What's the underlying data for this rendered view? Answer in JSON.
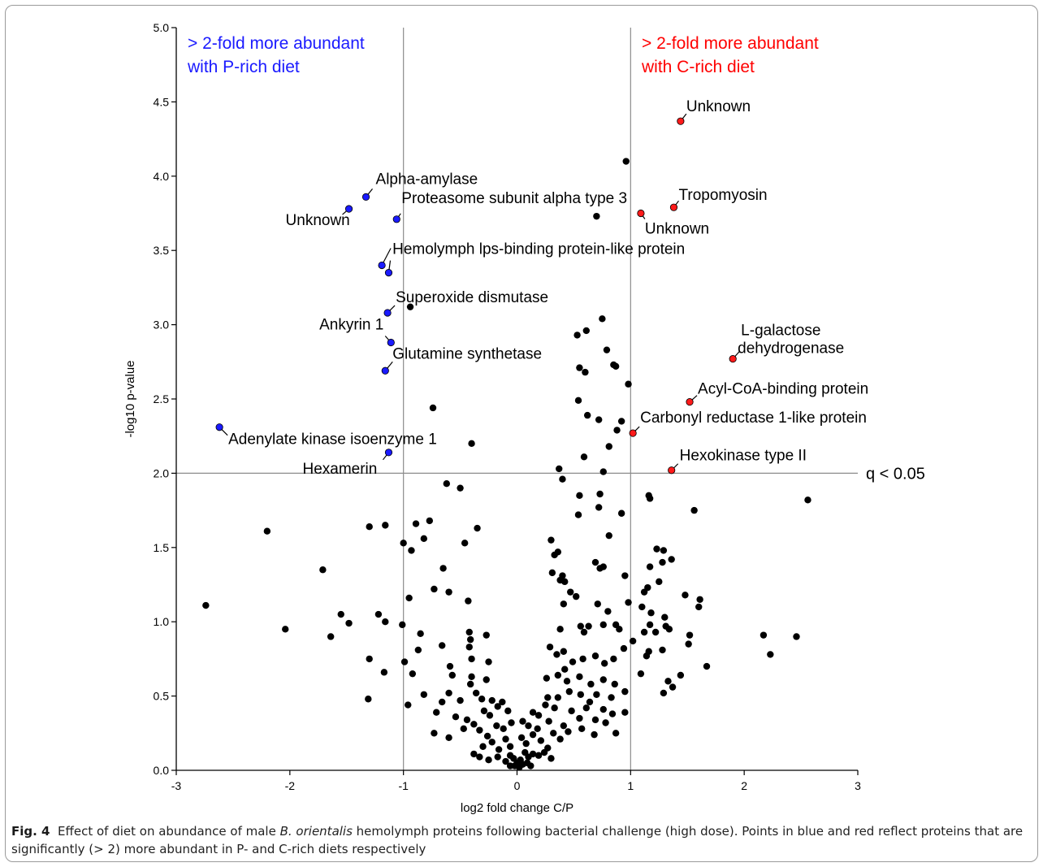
{
  "chart_data": {
    "type": "scatter",
    "xlabel": "log2 fold change C/P",
    "ylabel": "-log10 p-value",
    "xlim": [
      -3,
      3
    ],
    "ylim": [
      0,
      5
    ],
    "x_ticks": [
      -3,
      -2,
      -1,
      0,
      1,
      2,
      3
    ],
    "x_tick_labels": [
      "-3",
      "-2",
      "-1",
      "0",
      "1",
      "2",
      "3"
    ],
    "y_ticks": [
      0,
      0.5,
      1,
      1.5,
      2,
      2.5,
      3,
      3.5,
      4,
      4.5,
      5
    ],
    "y_tick_labels": [
      "0.0",
      "0.5",
      "1.0",
      "1.5",
      "2.0",
      "2.5",
      "3.0",
      "3.5",
      "4.0",
      "4.5",
      "5.0"
    ],
    "grid": false,
    "reference_lines": [
      {
        "axis": "x",
        "value": -1
      },
      {
        "axis": "x",
        "value": 1
      },
      {
        "axis": "y",
        "value": 2.0,
        "label": "q <  0.05"
      }
    ],
    "region_labels": [
      {
        "lines": [
          "> 2-fold more abundant",
          "with P-rich diet"
        ],
        "color": "#1a1aff",
        "position": "top-left"
      },
      {
        "lines": [
          "> 2-fold more abundant",
          "with C-rich diet"
        ],
        "color": "#ff0000",
        "position": "top-right"
      }
    ],
    "colors": {
      "blue": "#1a1aff",
      "red": "#ff1a1a",
      "black": "#000000",
      "line": "#8c8c8c"
    },
    "highlighted": [
      {
        "name": "Alpha-amylase",
        "x": -1.33,
        "y": 3.86,
        "color": "blue"
      },
      {
        "name": "Unknown",
        "x": -1.48,
        "y": 3.78,
        "color": "blue"
      },
      {
        "name": "Proteasome subunit alpha type 3",
        "x": -1.06,
        "y": 3.71,
        "color": "blue"
      },
      {
        "name": "Hemolymph lps-binding protein-like protein",
        "x": -1.19,
        "y": 3.4,
        "color": "blue"
      },
      {
        "name": "",
        "x": -1.13,
        "y": 3.35,
        "color": "blue"
      },
      {
        "name": "Superoxide dismutase",
        "x": -1.14,
        "y": 3.08,
        "color": "blue"
      },
      {
        "name": "Ankyrin 1",
        "x": -1.11,
        "y": 2.88,
        "color": "blue"
      },
      {
        "name": "Glutamine synthetase",
        "x": -1.16,
        "y": 2.69,
        "color": "blue"
      },
      {
        "name": "Adenylate kinase isoenzyme 1",
        "x": -2.62,
        "y": 2.31,
        "color": "blue"
      },
      {
        "name": "Hexamerin",
        "x": -1.13,
        "y": 2.14,
        "color": "blue"
      },
      {
        "name": "Unknown",
        "x": 1.44,
        "y": 4.37,
        "color": "red"
      },
      {
        "name": "Tropomyosin",
        "x": 1.38,
        "y": 3.79,
        "color": "red"
      },
      {
        "name": "Unknown",
        "x": 1.09,
        "y": 3.75,
        "color": "red"
      },
      {
        "name": "L-galactose dehydrogenase",
        "x": 1.9,
        "y": 2.77,
        "color": "red"
      },
      {
        "name": "Acyl-CoA-binding protein",
        "x": 1.52,
        "y": 2.48,
        "color": "red"
      },
      {
        "name": "Carbonyl reductase 1-like protein",
        "x": 1.02,
        "y": 2.27,
        "color": "red"
      },
      {
        "name": "Hexokinase type II",
        "x": 1.36,
        "y": 2.02,
        "color": "red"
      }
    ],
    "points": [
      [
        0.96,
        4.1
      ],
      [
        0.7,
        3.73
      ],
      [
        -0.94,
        3.12
      ],
      [
        0.75,
        3.04
      ],
      [
        0.61,
        2.96
      ],
      [
        0.53,
        2.93
      ],
      [
        0.79,
        2.83
      ],
      [
        0.85,
        2.73
      ],
      [
        0.87,
        2.72
      ],
      [
        0.55,
        2.71
      ],
      [
        0.6,
        2.68
      ],
      [
        0.98,
        2.6
      ],
      [
        -0.74,
        2.44
      ],
      [
        0.54,
        2.49
      ],
      [
        0.62,
        2.39
      ],
      [
        0.72,
        2.36
      ],
      [
        0.88,
        2.29
      ],
      [
        0.92,
        2.35
      ],
      [
        -0.4,
        2.2
      ],
      [
        0.59,
        2.11
      ],
      [
        0.81,
        2.18
      ],
      [
        0.37,
        2.03
      ],
      [
        0.76,
        2.01
      ],
      [
        0.4,
        1.96
      ],
      [
        -0.62,
        1.93
      ],
      [
        -0.5,
        1.9
      ],
      [
        0.55,
        1.85
      ],
      [
        0.73,
        1.86
      ],
      [
        0.72,
        1.77
      ],
      [
        0.92,
        1.73
      ],
      [
        0.54,
        1.72
      ],
      [
        1.16,
        1.85
      ],
      [
        1.17,
        1.83
      ],
      [
        1.56,
        1.75
      ],
      [
        -2.2,
        1.61
      ],
      [
        -1.3,
        1.64
      ],
      [
        -1.16,
        1.65
      ],
      [
        -0.89,
        1.66
      ],
      [
        -0.77,
        1.68
      ],
      [
        -0.35,
        1.63
      ],
      [
        -0.82,
        1.56
      ],
      [
        -1.0,
        1.53
      ],
      [
        -0.46,
        1.53
      ],
      [
        -0.93,
        1.48
      ],
      [
        0.3,
        1.55
      ],
      [
        0.33,
        1.45
      ],
      [
        0.36,
        1.47
      ],
      [
        0.81,
        1.58
      ],
      [
        0.69,
        1.4
      ],
      [
        0.73,
        1.36
      ],
      [
        0.76,
        1.37
      ],
      [
        1.23,
        1.49
      ],
      [
        1.29,
        1.48
      ],
      [
        -1.71,
        1.35
      ],
      [
        -0.65,
        1.36
      ],
      [
        0.31,
        1.33
      ],
      [
        0.4,
        1.31
      ],
      [
        0.38,
        1.28
      ],
      [
        0.42,
        1.27
      ],
      [
        0.95,
        1.31
      ],
      [
        1.17,
        1.37
      ],
      [
        1.28,
        1.4
      ],
      [
        1.36,
        1.42
      ],
      [
        -0.73,
        1.22
      ],
      [
        -0.6,
        1.2
      ],
      [
        -0.95,
        1.16
      ],
      [
        -0.43,
        1.14
      ],
      [
        0.47,
        1.2
      ],
      [
        0.52,
        1.17
      ],
      [
        1.15,
        1.23
      ],
      [
        1.12,
        1.2
      ],
      [
        1.25,
        1.27
      ],
      [
        1.48,
        1.18
      ],
      [
        1.61,
        1.15
      ],
      [
        -2.74,
        1.11
      ],
      [
        -1.55,
        1.05
      ],
      [
        -1.48,
        0.99
      ],
      [
        -1.22,
        1.05
      ],
      [
        -1.16,
        1.0
      ],
      [
        -1.01,
        0.98
      ],
      [
        0.41,
        1.12
      ],
      [
        0.71,
        1.12
      ],
      [
        0.8,
        1.07
      ],
      [
        0.98,
        1.13
      ],
      [
        1.1,
        1.1
      ],
      [
        1.18,
        1.06
      ],
      [
        1.3,
        1.03
      ],
      [
        1.6,
        1.1
      ],
      [
        -2.04,
        0.95
      ],
      [
        -1.64,
        0.9
      ],
      [
        -0.85,
        0.92
      ],
      [
        -0.42,
        0.93
      ],
      [
        -0.41,
        0.88
      ],
      [
        -0.42,
        0.83
      ],
      [
        -0.27,
        0.91
      ],
      [
        0.38,
        0.95
      ],
      [
        0.56,
        0.97
      ],
      [
        0.59,
        0.93
      ],
      [
        0.63,
        0.97
      ],
      [
        0.76,
        0.98
      ],
      [
        0.87,
        0.98
      ],
      [
        0.9,
        0.95
      ],
      [
        1.02,
        0.87
      ],
      [
        1.12,
        0.93
      ],
      [
        1.17,
        0.98
      ],
      [
        1.22,
        0.93
      ],
      [
        1.31,
        0.97
      ],
      [
        1.34,
        0.95
      ],
      [
        1.52,
        0.91
      ],
      [
        2.17,
        0.91
      ],
      [
        2.46,
        0.9
      ],
      [
        -1.3,
        0.75
      ],
      [
        -1.17,
        0.66
      ],
      [
        -0.99,
        0.73
      ],
      [
        -0.87,
        0.81
      ],
      [
        -0.66,
        0.84
      ],
      [
        -0.59,
        0.7
      ],
      [
        -0.4,
        0.75
      ],
      [
        -0.25,
        0.73
      ],
      [
        0.29,
        0.83
      ],
      [
        0.35,
        0.78
      ],
      [
        0.41,
        0.8
      ],
      [
        0.49,
        0.73
      ],
      [
        0.58,
        0.75
      ],
      [
        0.69,
        0.77
      ],
      [
        0.77,
        0.72
      ],
      [
        0.85,
        0.75
      ],
      [
        0.94,
        0.82
      ],
      [
        1.16,
        0.8
      ],
      [
        1.14,
        0.77
      ],
      [
        1.28,
        0.81
      ],
      [
        1.51,
        0.85
      ],
      [
        1.67,
        0.7
      ],
      [
        2.23,
        0.78
      ],
      [
        -1.31,
        0.48
      ],
      [
        -0.92,
        0.65
      ],
      [
        -0.82,
        0.51
      ],
      [
        -0.96,
        0.44
      ],
      [
        -0.57,
        0.64
      ],
      [
        -0.4,
        0.63
      ],
      [
        -0.41,
        0.58
      ],
      [
        -0.27,
        0.61
      ],
      [
        0.26,
        0.62
      ],
      [
        0.36,
        0.64
      ],
      [
        0.42,
        0.68
      ],
      [
        0.44,
        0.6
      ],
      [
        0.55,
        0.63
      ],
      [
        0.65,
        0.58
      ],
      [
        0.76,
        0.61
      ],
      [
        0.86,
        0.58
      ],
      [
        1.09,
        0.65
      ],
      [
        1.33,
        0.6
      ],
      [
        1.44,
        0.64
      ],
      [
        1.29,
        0.52
      ],
      [
        1.37,
        0.56
      ],
      [
        -0.6,
        0.52
      ],
      [
        -0.66,
        0.46
      ],
      [
        -0.5,
        0.47
      ],
      [
        -0.36,
        0.52
      ],
      [
        -0.31,
        0.48
      ],
      [
        -0.22,
        0.47
      ],
      [
        -0.13,
        0.46
      ],
      [
        0.27,
        0.49
      ],
      [
        0.36,
        0.49
      ],
      [
        0.46,
        0.53
      ],
      [
        0.56,
        0.51
      ],
      [
        0.64,
        0.46
      ],
      [
        0.7,
        0.51
      ],
      [
        0.83,
        0.49
      ],
      [
        0.95,
        0.53
      ],
      [
        -0.71,
        0.39
      ],
      [
        -0.54,
        0.36
      ],
      [
        -0.44,
        0.34
      ],
      [
        -0.29,
        0.4
      ],
      [
        -0.24,
        0.37
      ],
      [
        -0.17,
        0.43
      ],
      [
        -0.08,
        0.4
      ],
      [
        0.14,
        0.39
      ],
      [
        0.19,
        0.37
      ],
      [
        0.25,
        0.44
      ],
      [
        0.33,
        0.42
      ],
      [
        0.48,
        0.4
      ],
      [
        0.61,
        0.42
      ],
      [
        0.76,
        0.41
      ],
      [
        0.84,
        0.38
      ],
      [
        0.95,
        0.39
      ],
      [
        -0.73,
        0.25
      ],
      [
        -0.6,
        0.22
      ],
      [
        -0.47,
        0.28
      ],
      [
        -0.38,
        0.31
      ],
      [
        -0.33,
        0.27
      ],
      [
        -0.26,
        0.23
      ],
      [
        -0.18,
        0.3
      ],
      [
        -0.12,
        0.28
      ],
      [
        -0.05,
        0.32
      ],
      [
        0.05,
        0.33
      ],
      [
        0.1,
        0.3
      ],
      [
        0.18,
        0.28
      ],
      [
        0.28,
        0.33
      ],
      [
        0.41,
        0.3
      ],
      [
        0.55,
        0.35
      ],
      [
        0.69,
        0.34
      ],
      [
        0.78,
        0.32
      ],
      [
        0.87,
        0.25
      ],
      [
        0.68,
        0.24
      ],
      [
        0.57,
        0.28
      ],
      [
        -0.38,
        0.11
      ],
      [
        -0.3,
        0.16
      ],
      [
        -0.22,
        0.19
      ],
      [
        -0.16,
        0.14
      ],
      [
        -0.1,
        0.21
      ],
      [
        -0.06,
        0.16
      ],
      [
        0.04,
        0.22
      ],
      [
        0.08,
        0.18
      ],
      [
        0.14,
        0.24
      ],
      [
        0.21,
        0.2
      ],
      [
        0.27,
        0.15
      ],
      [
        0.32,
        0.25
      ],
      [
        0.38,
        0.21
      ],
      [
        0.45,
        0.26
      ],
      [
        -0.33,
        0.09
      ],
      [
        -0.25,
        0.07
      ],
      [
        -0.17,
        0.09
      ],
      [
        -0.1,
        0.06
      ],
      [
        -0.06,
        0.1
      ],
      [
        -0.03,
        0.08
      ],
      [
        0.0,
        0.05
      ],
      [
        0.03,
        0.07
      ],
      [
        0.07,
        0.12
      ],
      [
        0.1,
        0.09
      ],
      [
        0.14,
        0.11
      ],
      [
        0.19,
        0.1
      ],
      [
        0.24,
        0.12
      ],
      [
        0.3,
        0.08
      ],
      [
        -0.02,
        0.03
      ],
      [
        0.02,
        0.02
      ],
      [
        0.05,
        0.04
      ],
      [
        -0.06,
        0.03
      ],
      [
        0.09,
        0.05
      ],
      [
        0.12,
        0.03
      ],
      [
        2.56,
        1.82
      ]
    ]
  },
  "caption": {
    "fig_label": "Fig. 4",
    "text_before_italic": "Effect of diet on abundance of male ",
    "italic": "B. orientalis",
    "text_after_italic": " hemolymph proteins following bacterial challenge (high dose). Points in blue and red reflect proteins that are significantly (> 2) more abundant in P- and C-rich diets respectively"
  }
}
